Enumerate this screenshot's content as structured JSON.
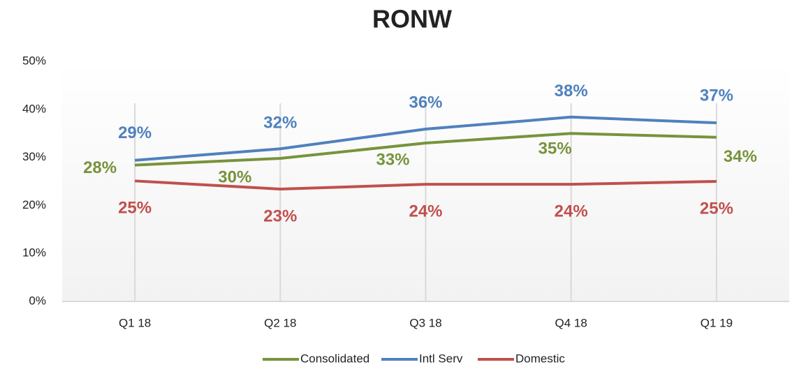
{
  "chart_data": {
    "type": "line",
    "title": "RONW",
    "categories": [
      "Q1 18",
      "Q2 18",
      "Q3 18",
      "Q4 18",
      "Q1 19"
    ],
    "series": [
      {
        "name": "Consolidated",
        "color": "#77933c",
        "values": [
          28.4,
          29.8,
          33.0,
          35.0,
          34.2
        ],
        "value_labels": [
          "28%",
          "30%",
          "33%",
          "35%",
          "34%"
        ]
      },
      {
        "name": "Intl Serv",
        "color": "#4f81bd",
        "values": [
          29.4,
          31.8,
          35.9,
          38.4,
          37.2
        ],
        "value_labels": [
          "29%",
          "32%",
          "36%",
          "38%",
          "37%"
        ]
      },
      {
        "name": "Domestic",
        "color": "#c0504d",
        "values": [
          25.1,
          23.4,
          24.4,
          24.4,
          25.0
        ],
        "value_labels": [
          "25%",
          "23%",
          "24%",
          "24%",
          "25%"
        ]
      }
    ],
    "ylim": [
      0,
      50
    ],
    "yticks": [
      {
        "value": 0,
        "label": "0%"
      },
      {
        "value": 10,
        "label": "10%"
      },
      {
        "value": 20,
        "label": "20%"
      },
      {
        "value": 30,
        "label": "30%"
      },
      {
        "value": 40,
        "label": "40%"
      },
      {
        "value": 50,
        "label": "50%"
      }
    ],
    "grid": true,
    "legend": "bottom"
  }
}
